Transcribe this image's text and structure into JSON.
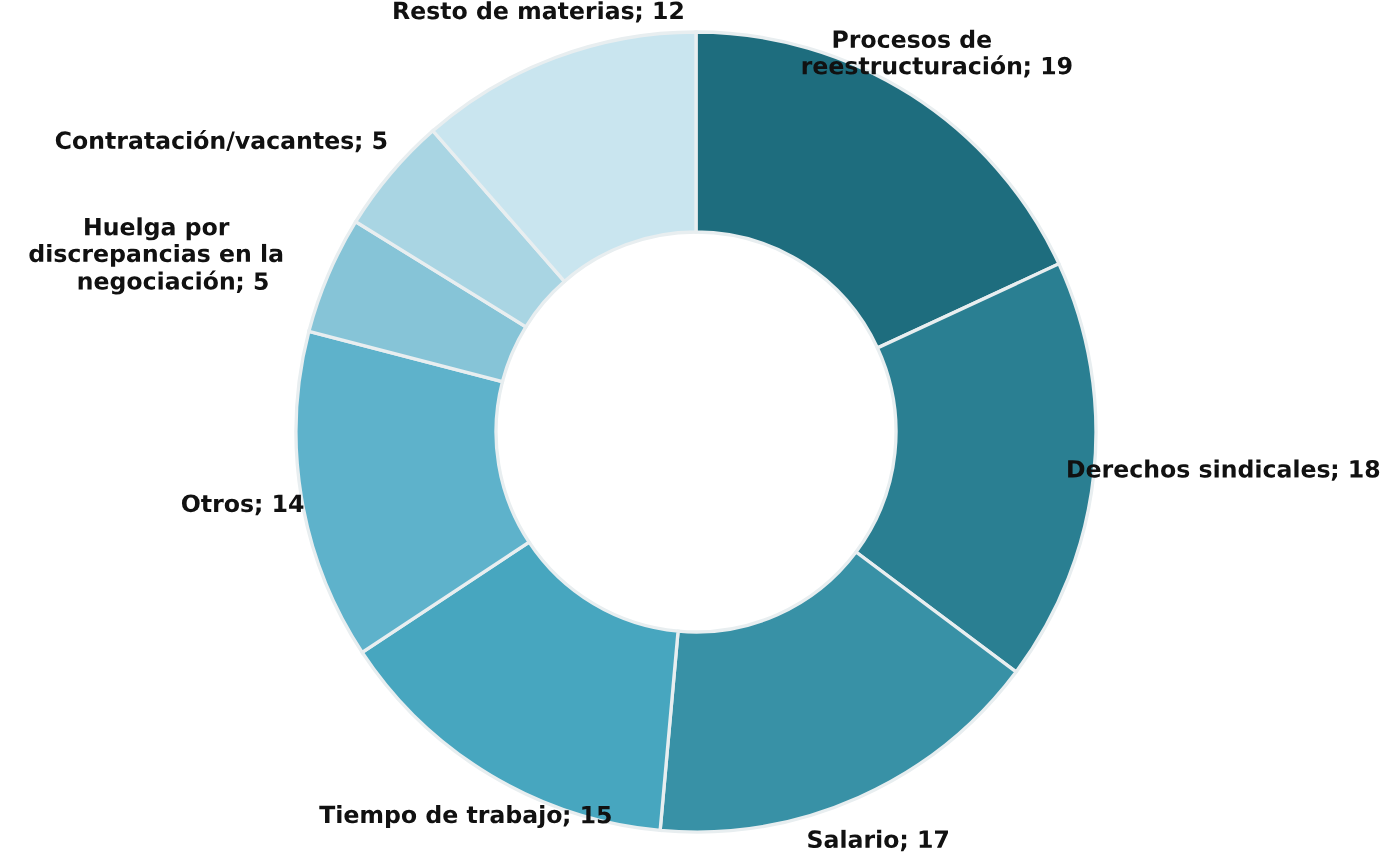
{
  "chart_data": {
    "type": "donut",
    "categories": [
      "Procesos de\nreestructuración",
      "Derechos sindicales",
      "Salario",
      "Tiempo de trabajo",
      "Otros",
      "Huelga por\ndiscrepancias en la\nnegociación",
      "Contratación/vacantes",
      "Resto de materias"
    ],
    "values": [
      19,
      18,
      17,
      15,
      14,
      5,
      5,
      12
    ],
    "colors": [
      "#1e6d7e",
      "#2a7f92",
      "#3891a6",
      "#47a6bf",
      "#5eb2cb",
      "#86c4d7",
      "#a9d5e3",
      "#c9e5ef"
    ],
    "value_labels": [
      "; 19",
      "; 18",
      "; 17",
      "; 15",
      "; 14",
      "; 5",
      "; 5",
      "; 12"
    ],
    "legend": false
  }
}
